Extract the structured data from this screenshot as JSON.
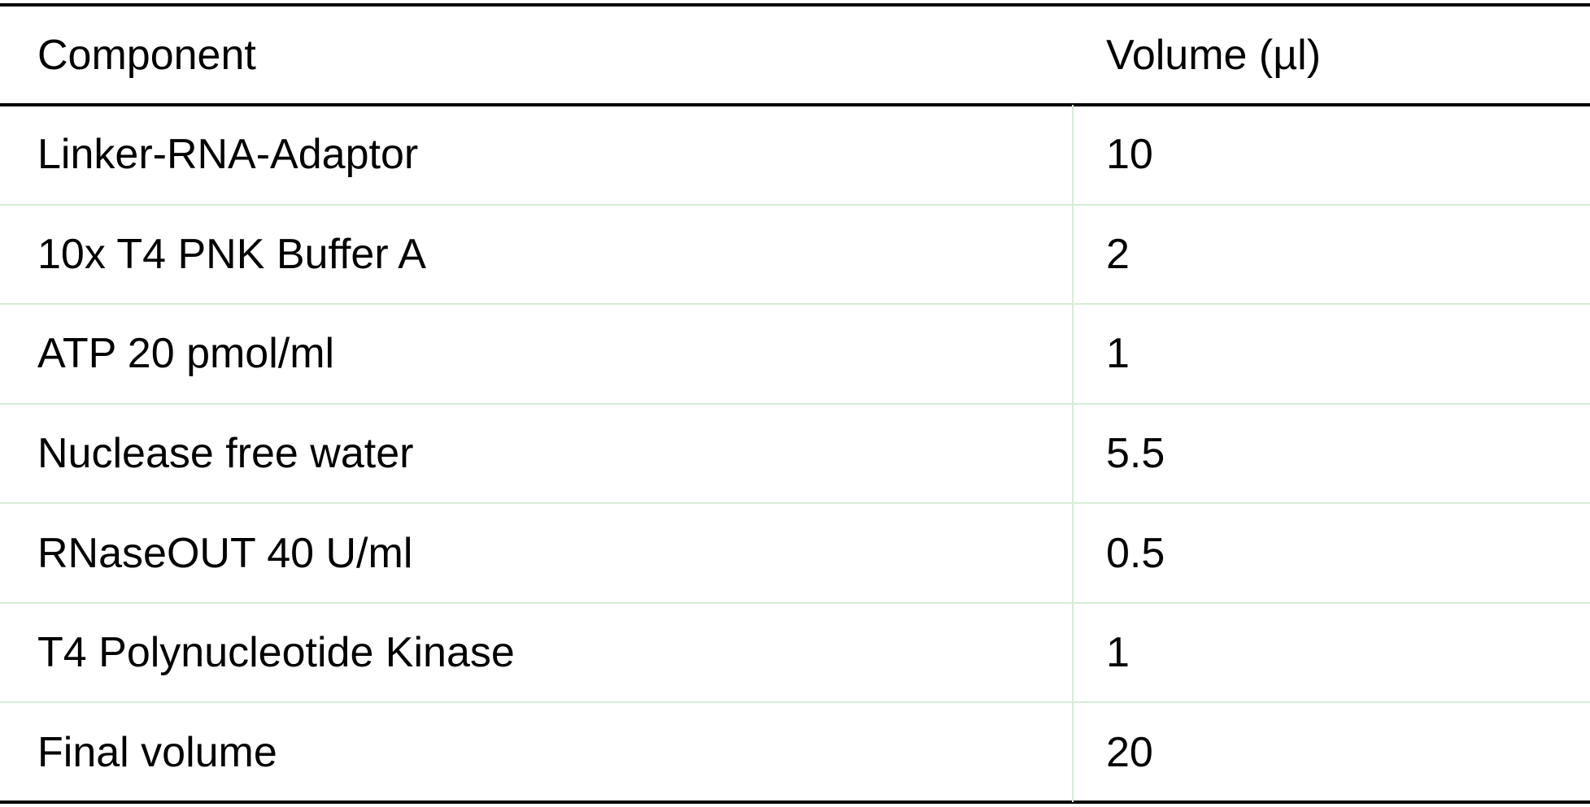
{
  "table": {
    "header": [
      "Component",
      "Volume (µl)"
    ],
    "rows": [
      [
        "Linker-RNA-Adaptor",
        "10"
      ],
      [
        "10x T4 PNK Buffer A",
        "2"
      ],
      [
        "ATP 20 pmol/ml",
        "1"
      ],
      [
        "Nuclease free water",
        "5.5"
      ],
      [
        "RNaseOUT 40 U/ml",
        "0.5"
      ],
      [
        "T4 Polynucleotide Kinase",
        "1"
      ],
      [
        "Final volume",
        "20"
      ]
    ]
  }
}
